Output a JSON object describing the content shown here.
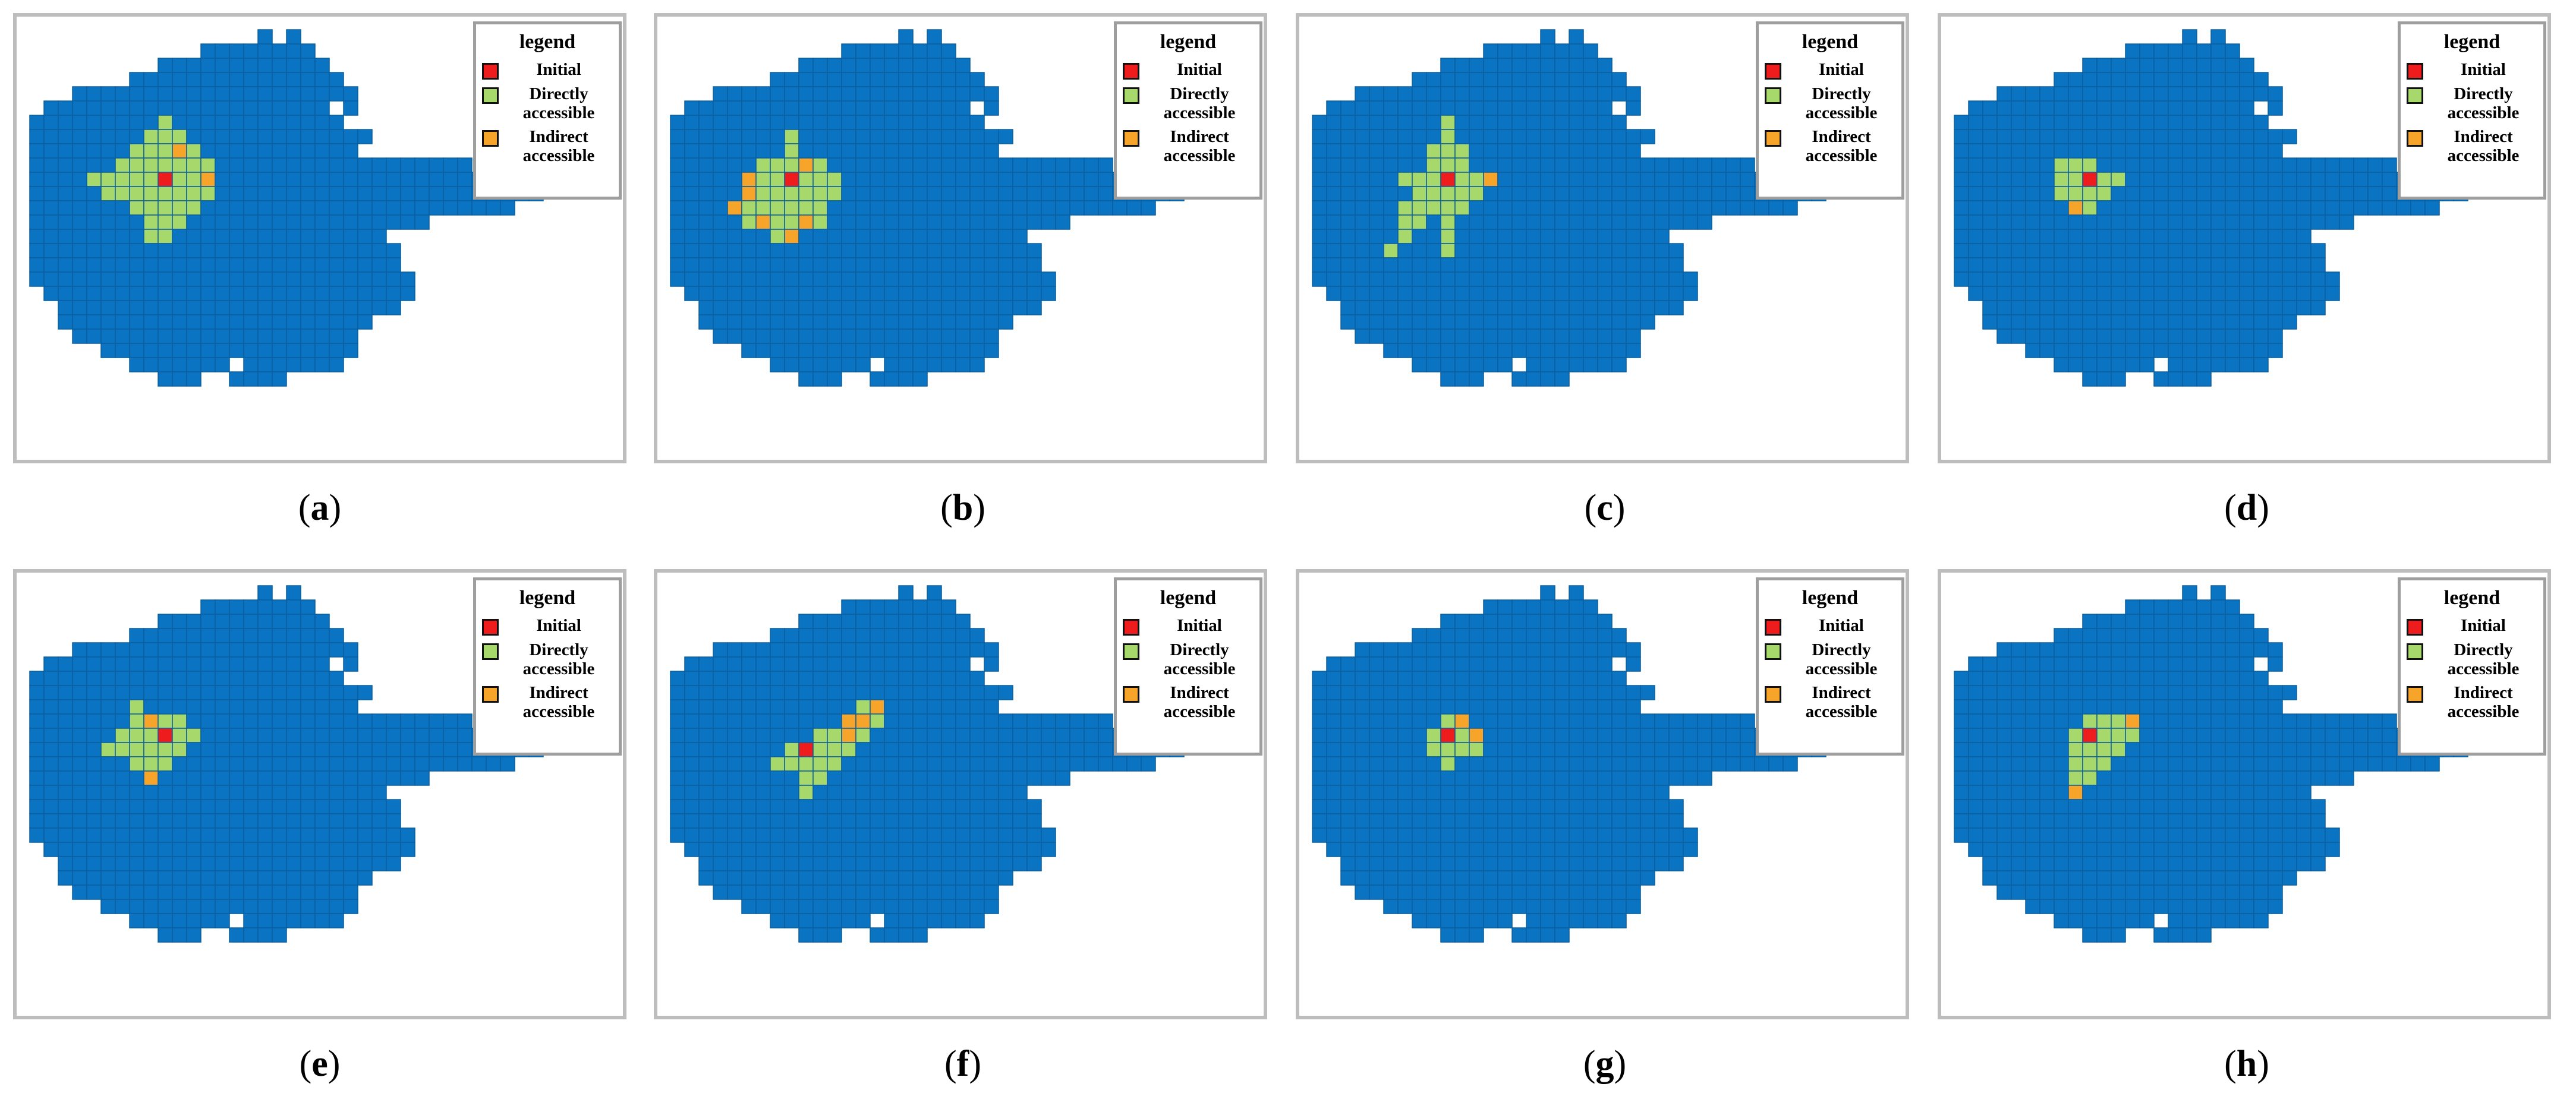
{
  "legend": {
    "title": "legend",
    "items": [
      {
        "label": "Initial",
        "color": "#ee1c1c"
      },
      {
        "label": "Directly accessible",
        "color": "#a6d86b"
      },
      {
        "label": "Indirect accessible",
        "color": "#f6a52a"
      }
    ]
  },
  "colors": {
    "region": "#0b74c2",
    "grid_line": "#0a5ea0",
    "initial": "#ee1c1c",
    "direct": "#a6d86b",
    "indirect": "#f6a52a"
  },
  "panels": [
    {
      "label": "a",
      "initial": [
        9,
        10
      ],
      "direct": [
        [
          9,
          6
        ],
        [
          8,
          7
        ],
        [
          9,
          7
        ],
        [
          10,
          7
        ],
        [
          7,
          8
        ],
        [
          8,
          8
        ],
        [
          9,
          8
        ],
        [
          10,
          8
        ],
        [
          11,
          8
        ],
        [
          6,
          9
        ],
        [
          7,
          9
        ],
        [
          8,
          9
        ],
        [
          9,
          9
        ],
        [
          10,
          9
        ],
        [
          11,
          9
        ],
        [
          12,
          9
        ],
        [
          4,
          10
        ],
        [
          5,
          10
        ],
        [
          6,
          10
        ],
        [
          7,
          10
        ],
        [
          8,
          10
        ],
        [
          10,
          10
        ],
        [
          11,
          10
        ],
        [
          12,
          10
        ],
        [
          5,
          11
        ],
        [
          6,
          11
        ],
        [
          7,
          11
        ],
        [
          8,
          11
        ],
        [
          9,
          11
        ],
        [
          10,
          11
        ],
        [
          11,
          11
        ],
        [
          12,
          11
        ],
        [
          7,
          12
        ],
        [
          8,
          12
        ],
        [
          9,
          12
        ],
        [
          10,
          12
        ],
        [
          11,
          12
        ],
        [
          8,
          13
        ],
        [
          9,
          13
        ],
        [
          10,
          13
        ],
        [
          8,
          14
        ],
        [
          9,
          14
        ]
      ],
      "indirect": [
        [
          10,
          8
        ],
        [
          12,
          10
        ]
      ]
    },
    {
      "label": "b",
      "initial": [
        8,
        10
      ],
      "direct": [
        [
          8,
          7
        ],
        [
          8,
          8
        ],
        [
          6,
          9
        ],
        [
          7,
          9
        ],
        [
          8,
          9
        ],
        [
          9,
          9
        ],
        [
          10,
          9
        ],
        [
          5,
          10
        ],
        [
          6,
          10
        ],
        [
          7,
          10
        ],
        [
          9,
          10
        ],
        [
          10,
          10
        ],
        [
          11,
          10
        ],
        [
          5,
          11
        ],
        [
          6,
          11
        ],
        [
          7,
          11
        ],
        [
          8,
          11
        ],
        [
          9,
          11
        ],
        [
          10,
          11
        ],
        [
          11,
          11
        ],
        [
          4,
          12
        ],
        [
          5,
          12
        ],
        [
          6,
          12
        ],
        [
          7,
          12
        ],
        [
          8,
          12
        ],
        [
          9,
          12
        ],
        [
          10,
          12
        ],
        [
          5,
          13
        ],
        [
          6,
          13
        ],
        [
          7,
          13
        ],
        [
          8,
          13
        ],
        [
          9,
          13
        ],
        [
          10,
          13
        ],
        [
          7,
          14
        ],
        [
          8,
          14
        ]
      ],
      "indirect": [
        [
          5,
          10
        ],
        [
          9,
          9
        ],
        [
          4,
          12
        ],
        [
          6,
          13
        ],
        [
          9,
          13
        ],
        [
          8,
          14
        ],
        [
          5,
          11
        ]
      ]
    },
    {
      "label": "c",
      "initial": [
        9,
        10
      ],
      "direct": [
        [
          9,
          6
        ],
        [
          9,
          7
        ],
        [
          8,
          8
        ],
        [
          9,
          8
        ],
        [
          10,
          8
        ],
        [
          8,
          9
        ],
        [
          9,
          9
        ],
        [
          10,
          9
        ],
        [
          6,
          10
        ],
        [
          7,
          10
        ],
        [
          8,
          10
        ],
        [
          10,
          10
        ],
        [
          11,
          10
        ],
        [
          12,
          10
        ],
        [
          7,
          11
        ],
        [
          8,
          11
        ],
        [
          9,
          11
        ],
        [
          10,
          11
        ],
        [
          11,
          11
        ],
        [
          6,
          12
        ],
        [
          7,
          12
        ],
        [
          8,
          12
        ],
        [
          9,
          12
        ],
        [
          10,
          12
        ],
        [
          6,
          13
        ],
        [
          7,
          13
        ],
        [
          9,
          13
        ],
        [
          6,
          14
        ],
        [
          9,
          14
        ],
        [
          5,
          15
        ],
        [
          9,
          15
        ]
      ],
      "indirect": [
        [
          12,
          10
        ]
      ]
    },
    {
      "label": "d",
      "initial": [
        9,
        10
      ],
      "direct": [
        [
          7,
          9
        ],
        [
          8,
          9
        ],
        [
          9,
          9
        ],
        [
          7,
          10
        ],
        [
          8,
          10
        ],
        [
          10,
          10
        ],
        [
          11,
          10
        ],
        [
          7,
          11
        ],
        [
          8,
          11
        ],
        [
          9,
          11
        ],
        [
          10,
          11
        ],
        [
          8,
          12
        ],
        [
          9,
          12
        ]
      ],
      "indirect": [
        [
          8,
          12
        ]
      ]
    },
    {
      "label": "e",
      "initial": [
        9,
        10
      ],
      "direct": [
        [
          7,
          8
        ],
        [
          7,
          9
        ],
        [
          8,
          9
        ],
        [
          9,
          9
        ],
        [
          10,
          9
        ],
        [
          6,
          10
        ],
        [
          7,
          10
        ],
        [
          8,
          10
        ],
        [
          10,
          10
        ],
        [
          11,
          10
        ],
        [
          5,
          11
        ],
        [
          6,
          11
        ],
        [
          7,
          11
        ],
        [
          8,
          11
        ],
        [
          9,
          11
        ],
        [
          10,
          11
        ],
        [
          7,
          12
        ],
        [
          8,
          12
        ],
        [
          9,
          12
        ],
        [
          8,
          13
        ]
      ],
      "indirect": [
        [
          8,
          9
        ],
        [
          8,
          13
        ]
      ]
    },
    {
      "label": "f",
      "initial": [
        9,
        11
      ],
      "direct": [
        [
          13,
          8
        ],
        [
          14,
          8
        ],
        [
          12,
          9
        ],
        [
          13,
          9
        ],
        [
          14,
          9
        ],
        [
          10,
          10
        ],
        [
          11,
          10
        ],
        [
          12,
          10
        ],
        [
          13,
          10
        ],
        [
          8,
          11
        ],
        [
          10,
          11
        ],
        [
          11,
          11
        ],
        [
          12,
          11
        ],
        [
          7,
          12
        ],
        [
          8,
          12
        ],
        [
          9,
          12
        ],
        [
          10,
          12
        ],
        [
          11,
          12
        ],
        [
          9,
          13
        ],
        [
          10,
          13
        ],
        [
          9,
          14
        ]
      ],
      "indirect": [
        [
          14,
          8
        ],
        [
          12,
          9
        ],
        [
          13,
          9
        ],
        [
          12,
          10
        ]
      ]
    },
    {
      "label": "g",
      "initial": [
        9,
        10
      ],
      "direct": [
        [
          9,
          9
        ],
        [
          10,
          9
        ],
        [
          8,
          10
        ],
        [
          10,
          10
        ],
        [
          11,
          10
        ],
        [
          8,
          11
        ],
        [
          9,
          11
        ],
        [
          10,
          11
        ],
        [
          11,
          11
        ],
        [
          9,
          12
        ]
      ],
      "indirect": [
        [
          10,
          9
        ],
        [
          11,
          10
        ]
      ]
    },
    {
      "label": "h",
      "initial": [
        9,
        10
      ],
      "direct": [
        [
          9,
          9
        ],
        [
          10,
          9
        ],
        [
          11,
          9
        ],
        [
          12,
          9
        ],
        [
          8,
          10
        ],
        [
          10,
          10
        ],
        [
          11,
          10
        ],
        [
          12,
          10
        ],
        [
          8,
          11
        ],
        [
          9,
          11
        ],
        [
          10,
          11
        ],
        [
          11,
          11
        ],
        [
          8,
          12
        ],
        [
          9,
          12
        ],
        [
          10,
          12
        ],
        [
          8,
          13
        ],
        [
          9,
          13
        ],
        [
          8,
          14
        ]
      ],
      "indirect": [
        [
          12,
          9
        ],
        [
          8,
          14
        ]
      ]
    }
  ]
}
